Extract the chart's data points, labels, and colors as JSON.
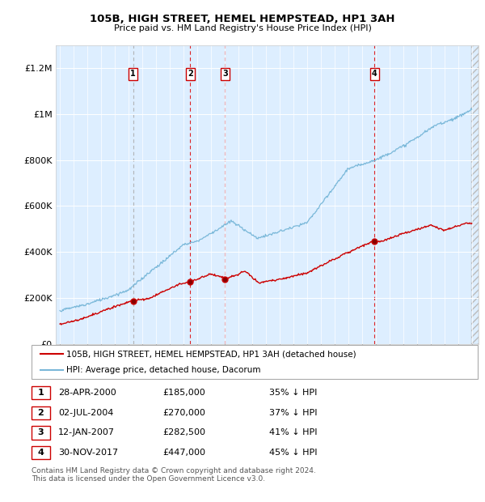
{
  "title": "105B, HIGH STREET, HEMEL HEMPSTEAD, HP1 3AH",
  "subtitle": "Price paid vs. HM Land Registry's House Price Index (HPI)",
  "transactions": [
    {
      "num": 1,
      "date_str": "28-APR-2000",
      "date_x": 2000.33,
      "price": 185000,
      "pct": "35% ↓ HPI",
      "vline_style": "--",
      "vline_color": "#aaaaaa"
    },
    {
      "num": 2,
      "date_str": "02-JUL-2004",
      "date_x": 2004.5,
      "price": 270000,
      "pct": "37% ↓ HPI",
      "vline_style": "--",
      "vline_color": "#dd0000"
    },
    {
      "num": 3,
      "date_str": "12-JAN-2007",
      "date_x": 2007.03,
      "price": 282500,
      "pct": "41% ↓ HPI",
      "vline_style": "--",
      "vline_color": "#dd0000"
    },
    {
      "num": 4,
      "date_str": "30-NOV-2017",
      "date_x": 2017.92,
      "price": 447000,
      "pct": "45% ↓ HPI",
      "vline_style": "--",
      "vline_color": "#dd0000"
    }
  ],
  "hpi_color": "#7ab8d9",
  "price_color": "#cc0000",
  "plot_bg": "#ddeeff",
  "ylim": [
    0,
    1300000
  ],
  "xlim": [
    1994.7,
    2025.5
  ],
  "yticks": [
    0,
    200000,
    400000,
    600000,
    800000,
    1000000,
    1200000
  ],
  "ytick_labels": [
    "£0",
    "£200K",
    "£400K",
    "£600K",
    "£800K",
    "£1M",
    "£1.2M"
  ],
  "xticks": [
    1995,
    1996,
    1997,
    1998,
    1999,
    2000,
    2001,
    2002,
    2003,
    2004,
    2005,
    2006,
    2007,
    2008,
    2009,
    2010,
    2011,
    2012,
    2013,
    2014,
    2015,
    2016,
    2017,
    2018,
    2019,
    2020,
    2021,
    2022,
    2023,
    2024,
    2025
  ],
  "legend_label_red": "105B, HIGH STREET, HEMEL HEMPSTEAD, HP1 3AH (detached house)",
  "legend_label_blue": "HPI: Average price, detached house, Dacorum",
  "footer": "Contains HM Land Registry data © Crown copyright and database right 2024.\nThis data is licensed under the Open Government Licence v3.0.",
  "marker_y": 1175000,
  "fig_width": 6.0,
  "fig_height": 6.2,
  "dpi": 100
}
